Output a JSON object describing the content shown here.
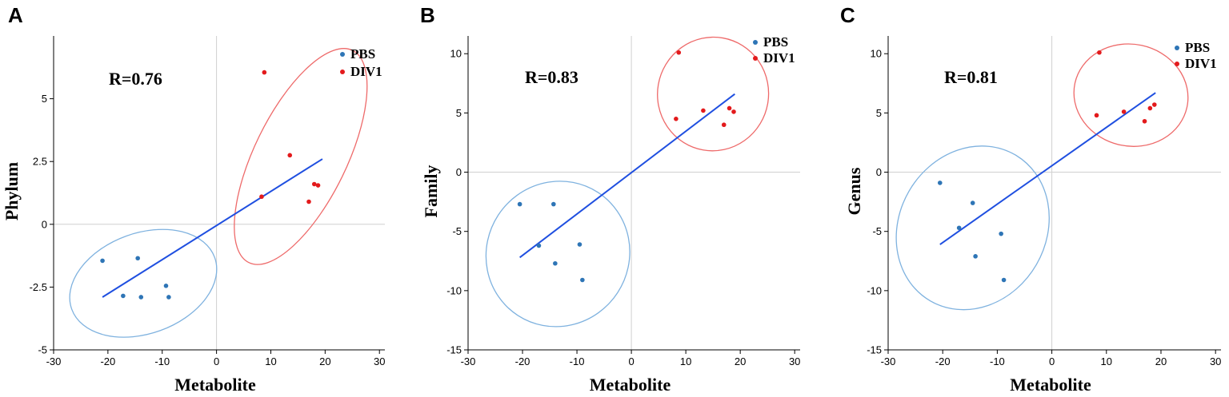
{
  "chart_data": [
    {
      "type": "scatter",
      "panel_label": "A",
      "xlabel": "Metabolite",
      "ylabel": "Phylum",
      "xlim": [
        -30,
        31
      ],
      "ylim": [
        -5,
        7.5
      ],
      "xticks": [
        -30,
        -20,
        -10,
        0,
        10,
        20,
        30
      ],
      "yticks": [
        -5,
        -2.5,
        0,
        2.5,
        5
      ],
      "ytick_labels": [
        "-5",
        "-2.5",
        "0",
        "2.5",
        "5"
      ],
      "annotation": "R=0.76",
      "legend_position": "top-right",
      "series": [
        {
          "name": "PBS",
          "color": "#2E75B6",
          "ellipse_color": "#7FB2DF",
          "x": [
            -21,
            -14.5,
            -17.2,
            -13.9,
            -9.3,
            -8.8
          ],
          "y": [
            -1.45,
            -1.35,
            -2.85,
            -2.9,
            -2.45,
            -2.9
          ]
        },
        {
          "name": "DIV1",
          "color": "#E31A1C",
          "ellipse_color": "#EE6A6A",
          "x": [
            8.8,
            13.5,
            8.3,
            18,
            18.7,
            17
          ],
          "y": [
            6.05,
            2.75,
            1.1,
            1.6,
            1.55,
            0.9
          ]
        }
      ],
      "regression": {
        "color": "#1F4FE0",
        "x": [
          -21,
          19.5
        ],
        "y": [
          -2.9,
          2.6
        ]
      },
      "ellipses": [
        {
          "series": "PBS",
          "cx": -13.5,
          "cy": -2.35,
          "rx": 14,
          "ry": 2.0,
          "angle_deg": 20
        },
        {
          "series": "DIV1",
          "cx": 15.5,
          "cy": 2.7,
          "rx": 8.5,
          "ry": 4.7,
          "angle_deg": -26
        }
      ]
    },
    {
      "type": "scatter",
      "panel_label": "B",
      "xlabel": "Metabolite",
      "ylabel": "Family",
      "xlim": [
        -30,
        31
      ],
      "ylim": [
        -15,
        11.5
      ],
      "xticks": [
        -30,
        -20,
        -10,
        0,
        10,
        20,
        30
      ],
      "yticks": [
        -15,
        -10,
        -5,
        0,
        5,
        10
      ],
      "ytick_labels": [
        "-15",
        "-10",
        "-5",
        "0",
        "5",
        "10"
      ],
      "annotation": "R=0.83",
      "legend_position": "top-right",
      "series": [
        {
          "name": "PBS",
          "color": "#2E75B6",
          "ellipse_color": "#7FB2DF",
          "x": [
            -20.5,
            -14.3,
            -17,
            -14,
            -9.5,
            -9
          ],
          "y": [
            -2.7,
            -2.7,
            -6.2,
            -7.7,
            -6.1,
            -9.1
          ]
        },
        {
          "name": "DIV1",
          "color": "#E31A1C",
          "ellipse_color": "#EE6A6A",
          "x": [
            8.7,
            13.2,
            8.2,
            18,
            18.8,
            17
          ],
          "y": [
            10.1,
            5.2,
            4.5,
            5.4,
            5.1,
            4.0
          ]
        }
      ],
      "regression": {
        "color": "#1F4FE0",
        "x": [
          -20.5,
          19
        ],
        "y": [
          -7.2,
          6.6
        ]
      },
      "ellipses": [
        {
          "series": "PBS",
          "cx": -13.5,
          "cy": -6.9,
          "rx": 13.5,
          "ry": 6.0,
          "angle_deg": 57
        },
        {
          "series": "DIV1",
          "cx": 15,
          "cy": 6.6,
          "rx": 10.2,
          "ry": 4.8,
          "angle_deg": -10
        }
      ]
    },
    {
      "type": "scatter",
      "panel_label": "C",
      "xlabel": "Metabolite",
      "ylabel": "Genus",
      "xlim": [
        -30,
        31
      ],
      "ylim": [
        -15,
        11.5
      ],
      "xticks": [
        -30,
        -20,
        -10,
        0,
        10,
        20,
        30
      ],
      "yticks": [
        -15,
        -10,
        -5,
        0,
        5,
        10
      ],
      "ytick_labels": [
        "-15",
        "-10",
        "-5",
        "0",
        "5",
        "10"
      ],
      "annotation": "R=0.81",
      "legend_position": "top-right",
      "series": [
        {
          "name": "PBS",
          "color": "#2E75B6",
          "ellipse_color": "#7FB2DF",
          "x": [
            -20.5,
            -14.5,
            -17,
            -14,
            -9.3,
            -8.8
          ],
          "y": [
            -0.9,
            -2.6,
            -4.7,
            -7.1,
            -5.2,
            -9.1
          ]
        },
        {
          "name": "DIV1",
          "color": "#E31A1C",
          "ellipse_color": "#EE6A6A",
          "x": [
            8.7,
            13.2,
            8.2,
            18,
            18.8,
            17
          ],
          "y": [
            10.1,
            5.1,
            4.8,
            5.4,
            5.7,
            4.3
          ]
        }
      ],
      "regression": {
        "color": "#1F4FE0",
        "x": [
          -20.5,
          19
        ],
        "y": [
          -6.1,
          6.7
        ]
      },
      "ellipses": [
        {
          "series": "PBS",
          "cx": -14.5,
          "cy": -4.7,
          "rx": 15.5,
          "ry": 6.2,
          "angle_deg": 60
        },
        {
          "series": "DIV1",
          "cx": 14.5,
          "cy": 6.5,
          "rx": 10.5,
          "ry": 4.3,
          "angle_deg": -12
        }
      ]
    }
  ]
}
